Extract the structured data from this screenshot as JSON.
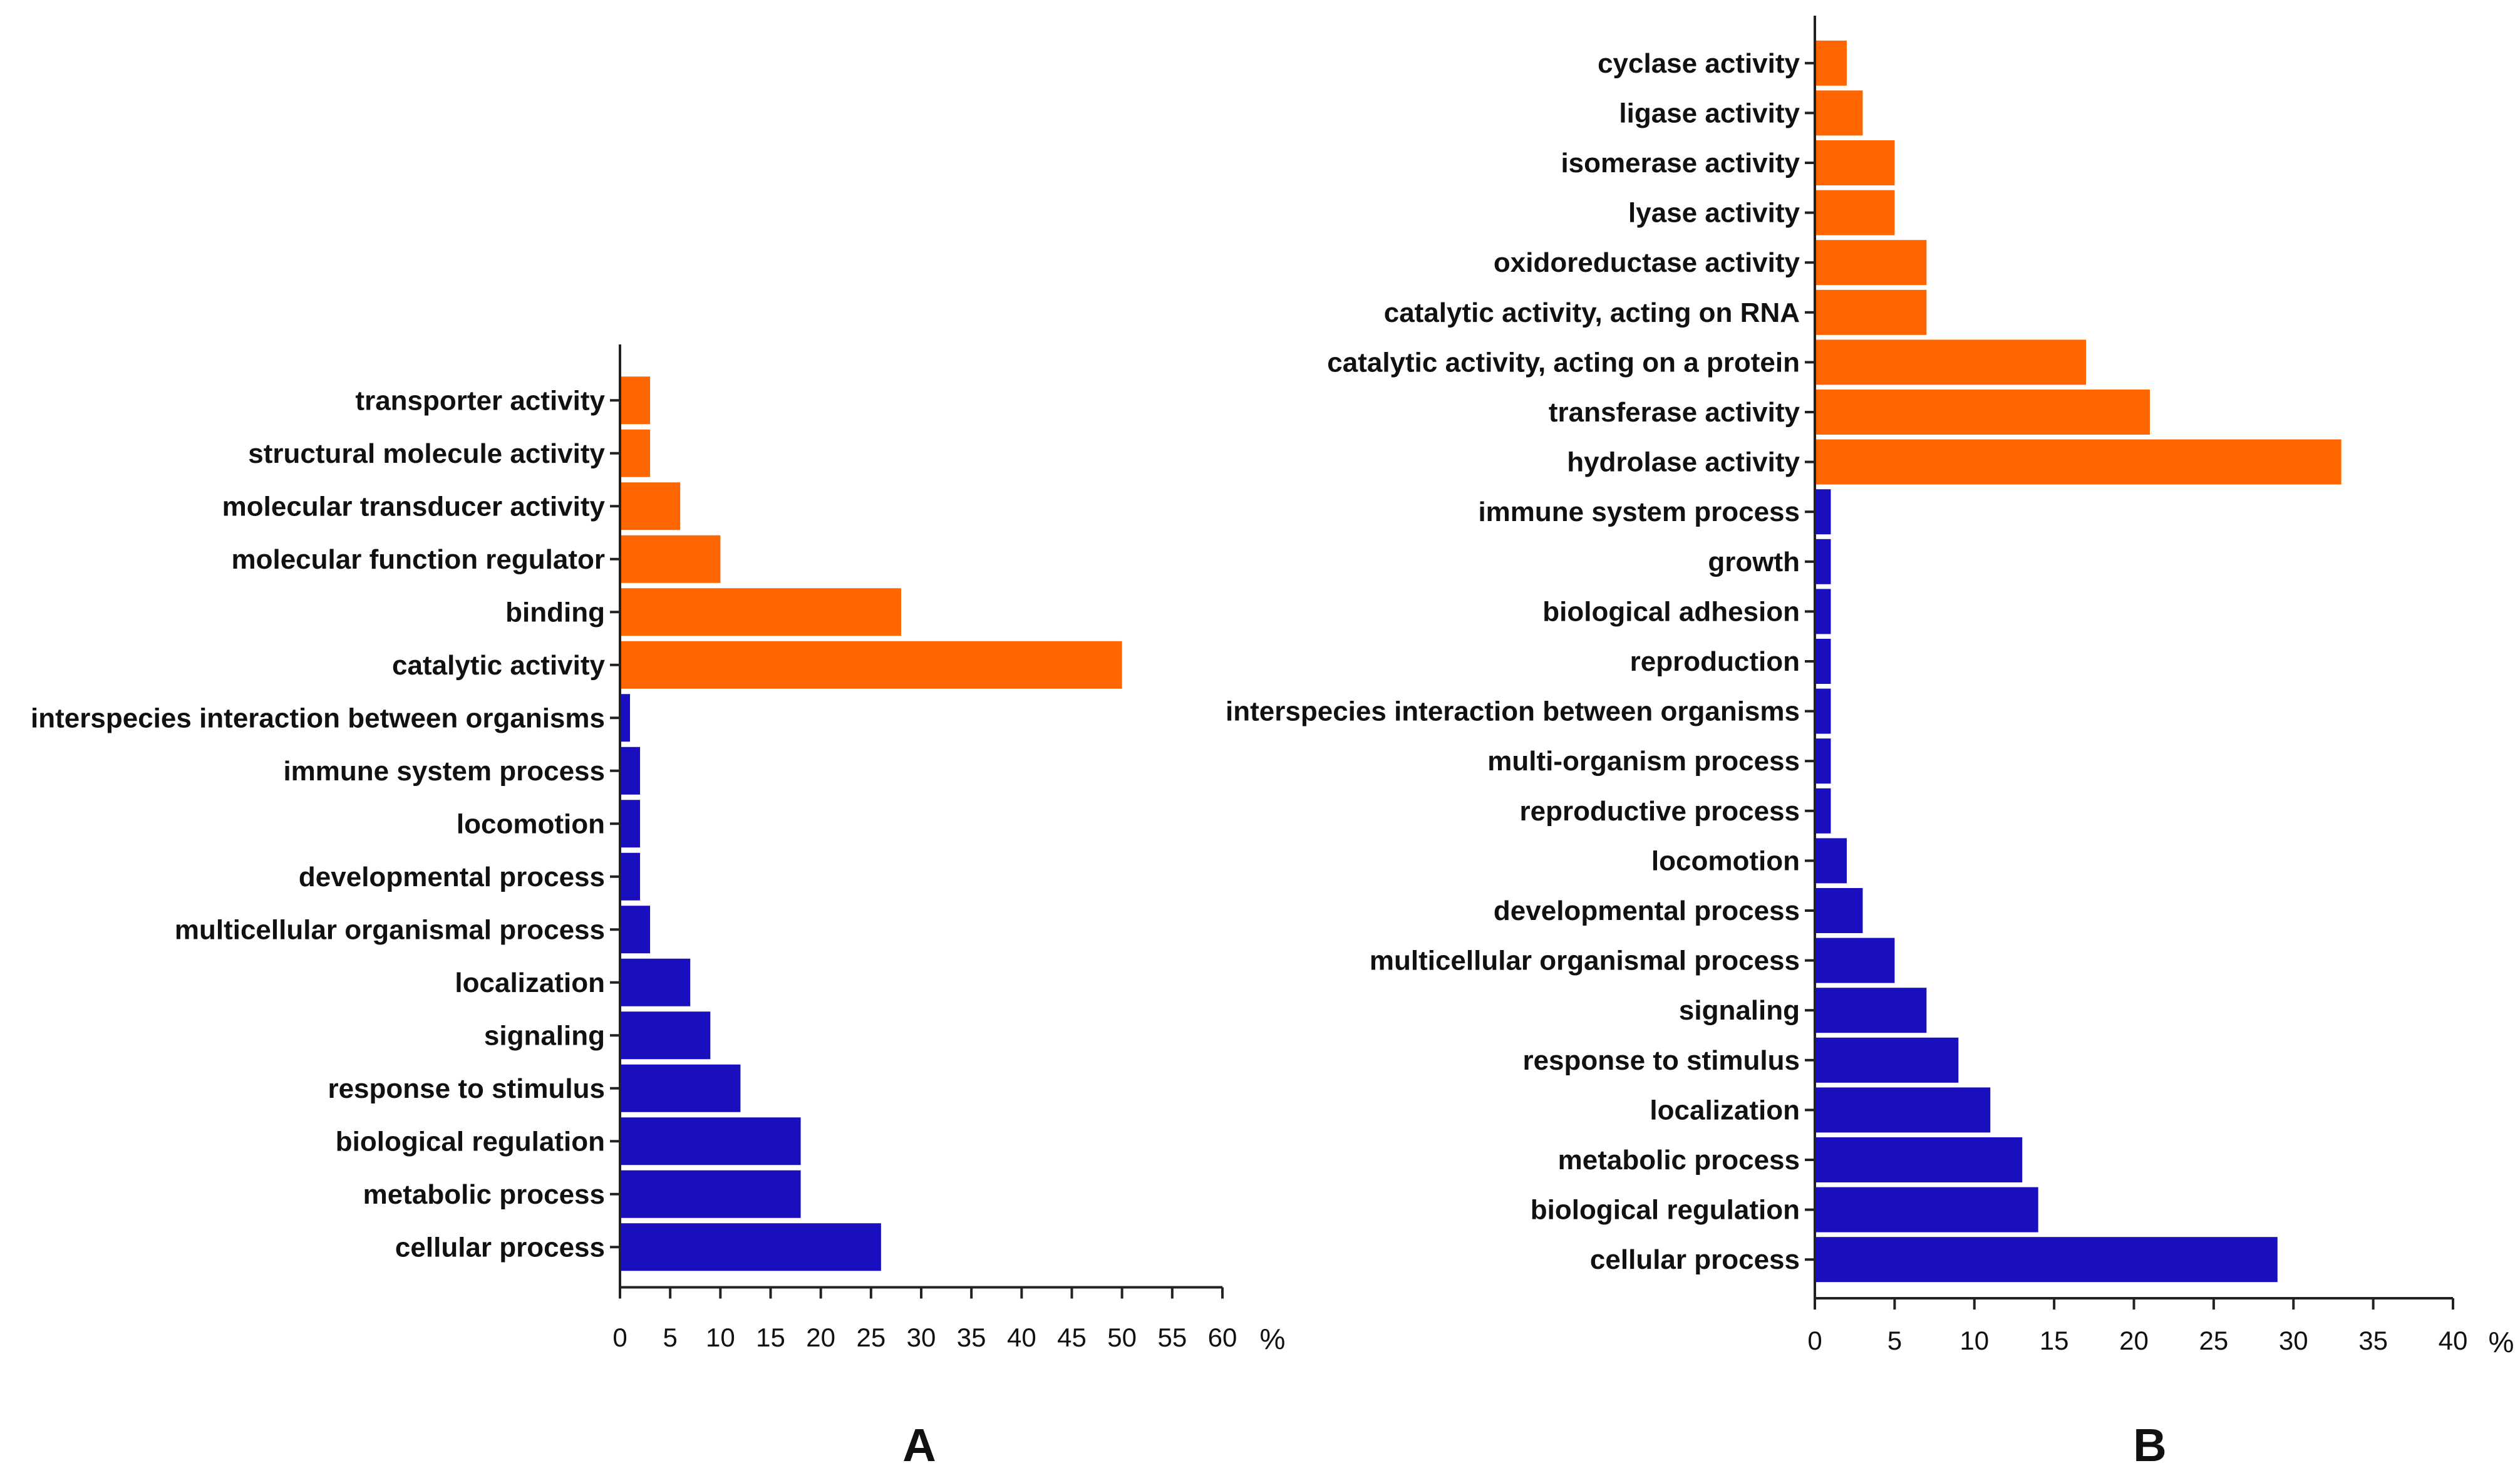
{
  "colors": {
    "molecular_function": "#FF6600",
    "biological_process": "#1A0FBF",
    "axis": "#222222",
    "text": "#111111"
  },
  "chart_data": [
    {
      "type": "bar",
      "orientation": "horizontal",
      "panel": "A",
      "xlabel": "%",
      "xlim": [
        0,
        60
      ],
      "xticks": [
        "0",
        "5",
        "10",
        "15",
        "20",
        "25",
        "30",
        "35",
        "40",
        "45",
        "50",
        "55",
        "60"
      ],
      "categories": [
        "transporter activity",
        "structural molecule activity",
        "molecular transducer activity",
        "molecular function regulator",
        "binding",
        "catalytic activity",
        "interspecies interaction between organisms",
        "immune system process",
        "locomotion",
        "developmental process",
        "multicellular organismal process",
        "localization",
        "signaling",
        "response to stimulus",
        "biological regulation",
        "metabolic process",
        "cellular process"
      ],
      "values": [
        3,
        3,
        6,
        10,
        28,
        50,
        1,
        2,
        2,
        2,
        3,
        7,
        9,
        12,
        18,
        18,
        26
      ],
      "groups": [
        "mf",
        "mf",
        "mf",
        "mf",
        "mf",
        "mf",
        "bp",
        "bp",
        "bp",
        "bp",
        "bp",
        "bp",
        "bp",
        "bp",
        "bp",
        "bp",
        "bp"
      ]
    },
    {
      "type": "bar",
      "orientation": "horizontal",
      "panel": "B",
      "xlabel": "%",
      "xlim": [
        0,
        40
      ],
      "xticks": [
        "0",
        "5",
        "10",
        "15",
        "20",
        "25",
        "30",
        "35",
        "40"
      ],
      "categories": [
        "cyclase activity",
        "ligase activity",
        "isomerase activity",
        "lyase activity",
        "oxidoreductase activity",
        "catalytic activity, acting on RNA",
        "catalytic activity, acting on a protein",
        "transferase activity",
        "hydrolase activity",
        "immune system process",
        "growth",
        "biological adhesion",
        "reproduction",
        "interspecies interaction between organisms",
        "multi-organism process",
        "reproductive process",
        "locomotion",
        "developmental process",
        "multicellular organismal process",
        "signaling",
        "response to stimulus",
        "localization",
        "metabolic process",
        "biological regulation",
        "cellular process"
      ],
      "values": [
        2,
        3,
        5,
        5,
        7,
        7,
        17,
        21,
        33,
        1,
        1,
        1,
        1,
        1,
        1,
        1,
        2,
        3,
        5,
        7,
        9,
        11,
        13,
        14,
        29
      ],
      "groups": [
        "mf",
        "mf",
        "mf",
        "mf",
        "mf",
        "mf",
        "mf",
        "mf",
        "mf",
        "bp",
        "bp",
        "bp",
        "bp",
        "bp",
        "bp",
        "bp",
        "bp",
        "bp",
        "bp",
        "bp",
        "bp",
        "bp",
        "bp",
        "bp",
        "bp"
      ]
    }
  ]
}
